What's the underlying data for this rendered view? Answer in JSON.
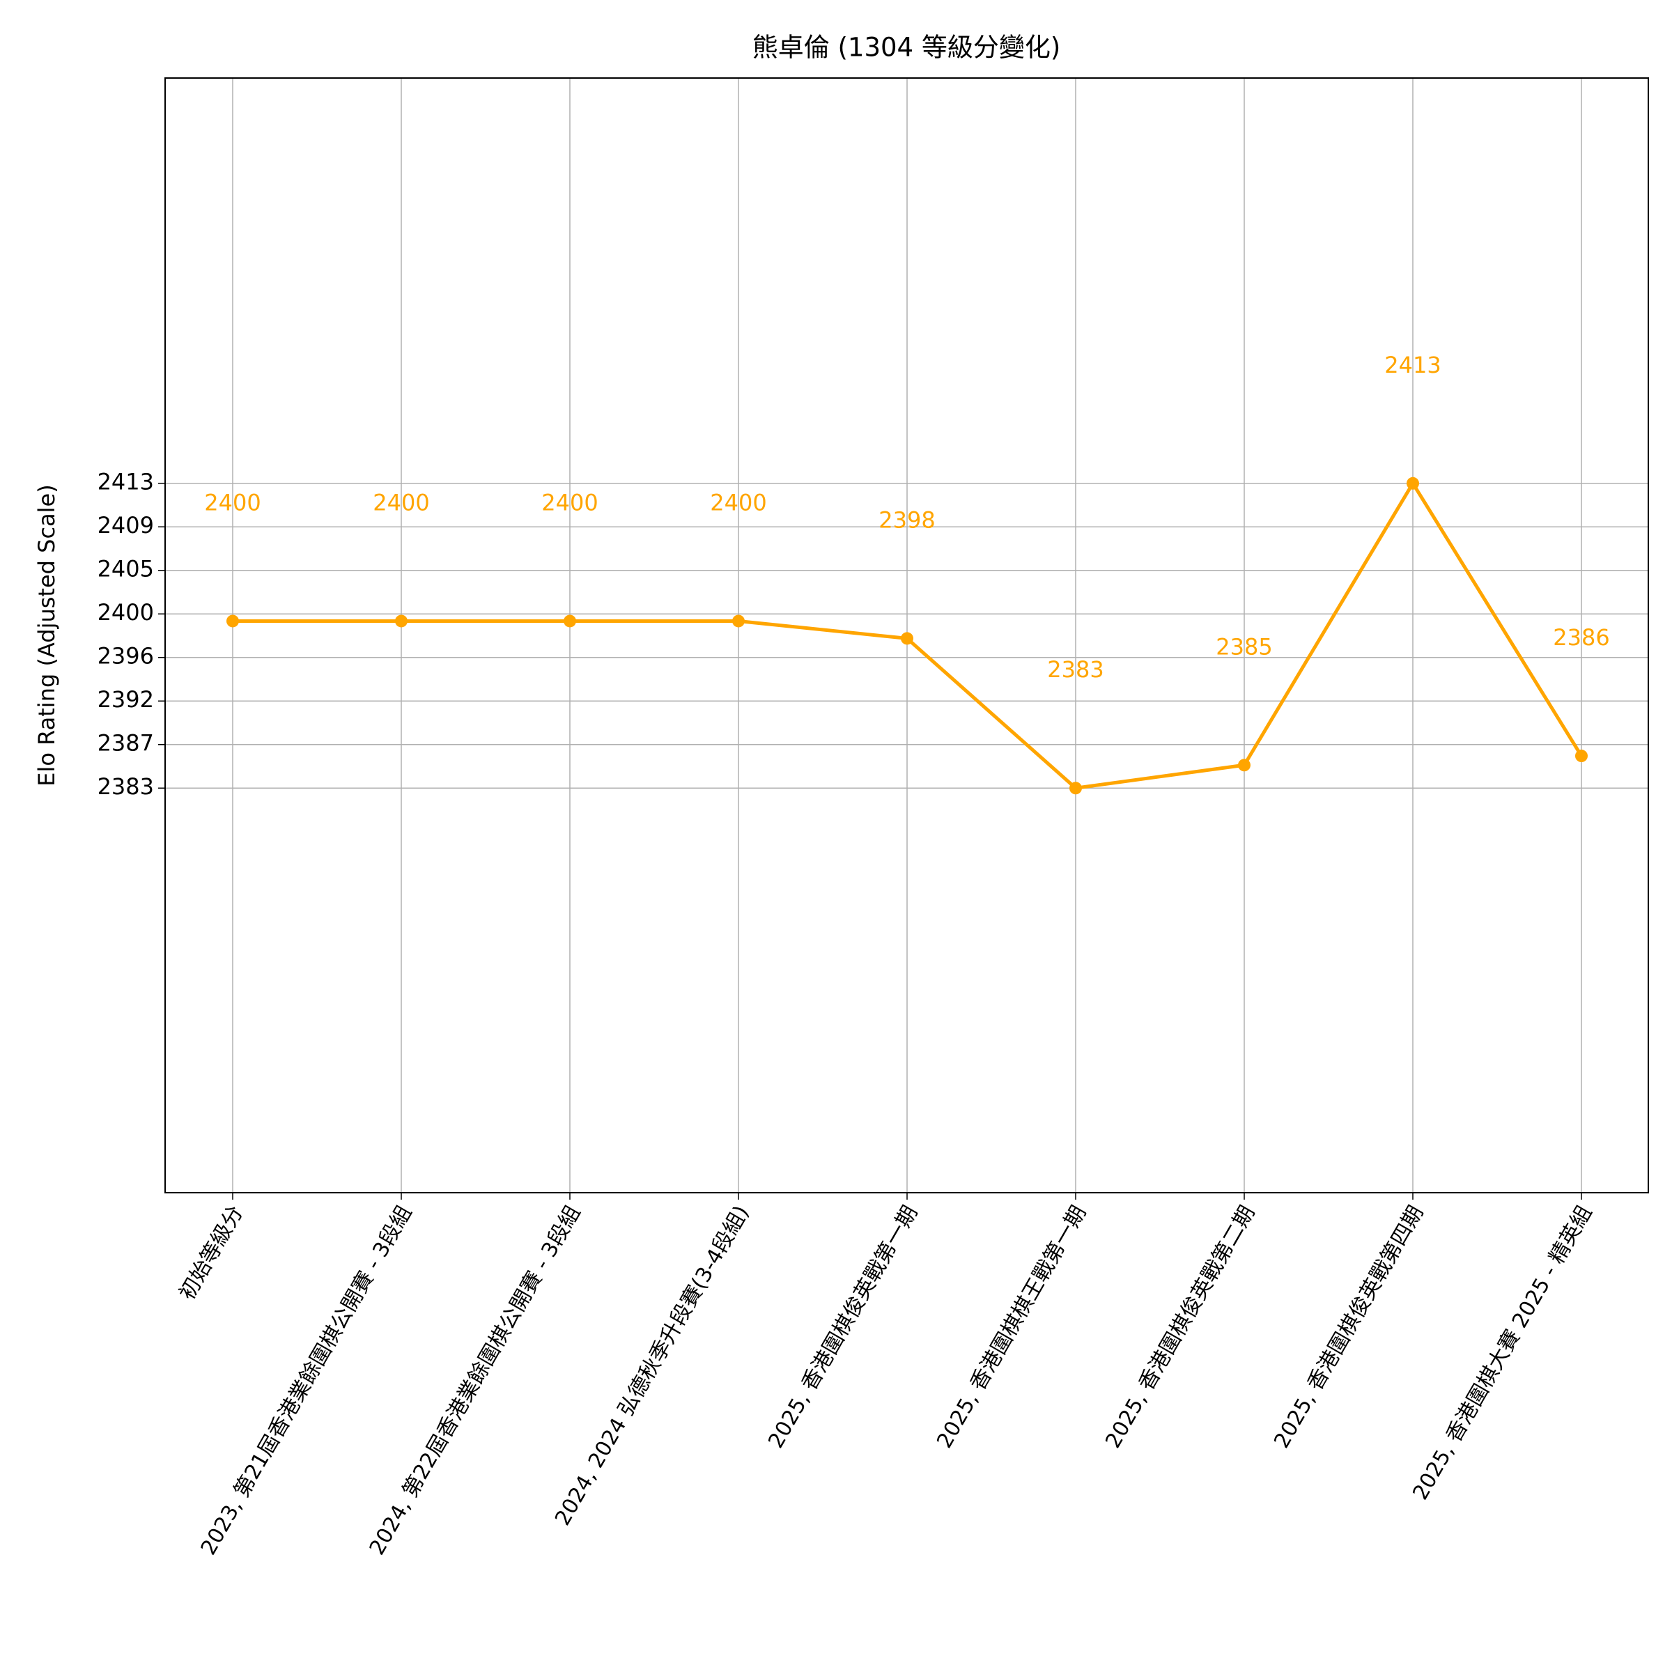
{
  "chart_data": {
    "type": "line",
    "title": "熊卓倫 (1304 等級分變化)",
    "y_label": "Elo Rating (Adjusted Scale)",
    "categories": [
      "初始等級分",
      "2023, 第21屆香港業餘圍棋公開賽 - 3段組",
      "2024, 第22屆香港業餘圍棋公開賽 - 3段組",
      "2024, 2024 弘德秋季升段賽(3-4段組)",
      "2025, 香港圍棋俊英戰第一期",
      "2025, 香港圍棋棋王戰第一期",
      "2025, 香港圍棋俊英戰第二期",
      "2025, 香港圍棋俊英戰第四期",
      "2025, 香港圍棋大賽 2025 - 精英組"
    ],
    "series": [
      {
        "name": "Elo",
        "color": "#ffa500",
        "values": [
          2399.55,
          2399.55,
          2399.55,
          2399.55,
          2397.85,
          2383.2,
          2385.45,
          2413.03,
          2386.35
        ],
        "value_labels": [
          "2400",
          "2400",
          "2400",
          "2400",
          "2398",
          "2383",
          "2385",
          "2413",
          "2386"
        ]
      }
    ],
    "ylim": [
      2343.6,
      2452.7
    ],
    "yticks": [
      {
        "value": 2383.2,
        "label": "2383"
      },
      {
        "value": 2387.462,
        "label": "2387"
      },
      {
        "value": 2391.724,
        "label": "2392"
      },
      {
        "value": 2395.986,
        "label": "2396"
      },
      {
        "value": 2400.248,
        "label": "2400"
      },
      {
        "value": 2404.51,
        "label": "2405"
      },
      {
        "value": 2408.772,
        "label": "2409"
      },
      {
        "value": 2413.034,
        "label": "2413"
      }
    ],
    "grid": true
  }
}
